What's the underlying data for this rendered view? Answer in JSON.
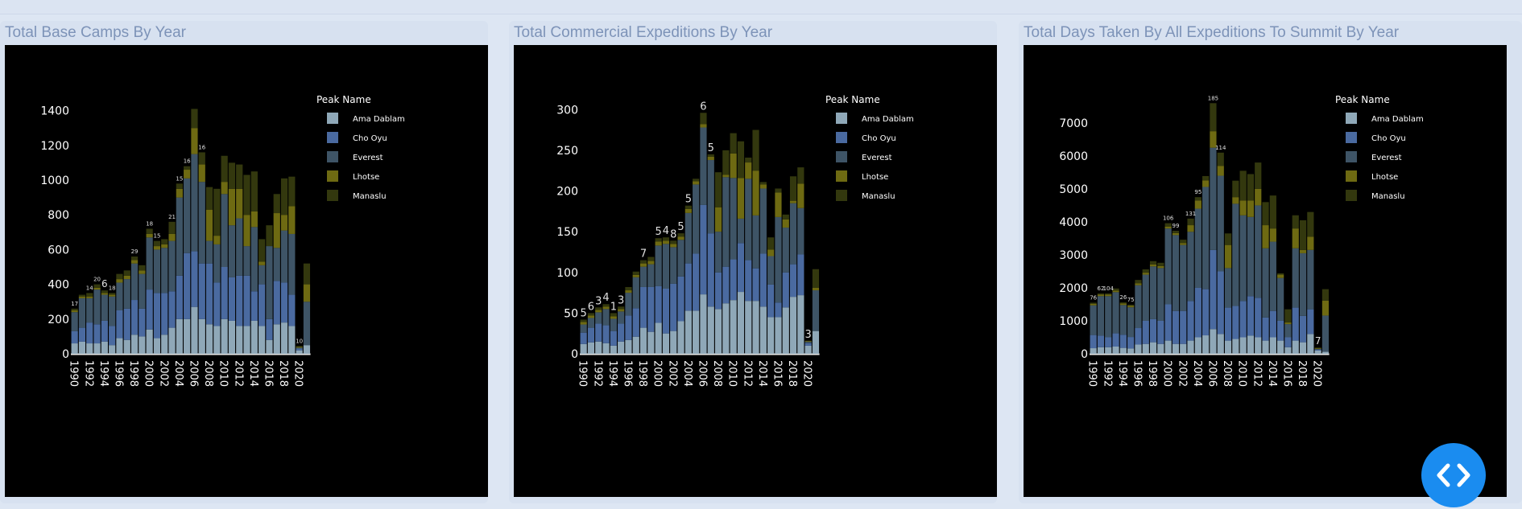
{
  "colors": {
    "Ama Dablam": "#8fa8b8",
    "Cho Oyu": "#4a6aa0",
    "Everest": "#3e5466",
    "Lhotse": "#6e6a12",
    "Manaslu": "#33380e"
  },
  "chart_data": [
    {
      "type": "bar",
      "title": "Total Base Camps By Year",
      "legend_title": "Peak Name",
      "legend_placement": "top-right",
      "stacked": true,
      "x_ticks": [
        "1990",
        "1992",
        "1994",
        "1996",
        "1998",
        "2000",
        "2002",
        "2004",
        "2006",
        "2008",
        "2010",
        "2012",
        "2014",
        "2016",
        "2018",
        "2020"
      ],
      "y_ticks": [
        "0",
        "200",
        "400",
        "600",
        "800",
        "1000",
        "1200",
        "1400"
      ],
      "ylim": [
        0,
        1500
      ],
      "categories": [
        "1990",
        "1991",
        "1992",
        "1993",
        "1994",
        "1995",
        "1996",
        "1997",
        "1998",
        "1999",
        "2000",
        "2001",
        "2002",
        "2003",
        "2004",
        "2005",
        "2006",
        "2007",
        "2008",
        "2009",
        "2010",
        "2011",
        "2012",
        "2013",
        "2014",
        "2015",
        "2016",
        "2017",
        "2018",
        "2019",
        "2020",
        "2021"
      ],
      "series": [
        {
          "name": "Ama Dablam",
          "values": [
            60,
            70,
            60,
            60,
            70,
            50,
            90,
            80,
            110,
            100,
            140,
            90,
            110,
            150,
            200,
            200,
            270,
            200,
            170,
            160,
            200,
            190,
            160,
            160,
            190,
            160,
            80,
            170,
            180,
            160,
            20,
            50
          ]
        },
        {
          "name": "Cho Oyu",
          "values": [
            70,
            80,
            120,
            110,
            120,
            110,
            160,
            180,
            200,
            160,
            230,
            260,
            240,
            210,
            250,
            380,
            320,
            320,
            350,
            250,
            300,
            250,
            290,
            290,
            170,
            240,
            120,
            250,
            230,
            180,
            10,
            0
          ]
        },
        {
          "name": "Everest",
          "values": [
            110,
            170,
            140,
            200,
            150,
            170,
            160,
            170,
            210,
            200,
            300,
            250,
            260,
            290,
            450,
            430,
            560,
            470,
            130,
            220,
            420,
            300,
            330,
            170,
            370,
            110,
            420,
            190,
            300,
            350,
            5,
            250
          ]
        },
        {
          "name": "Lhotse",
          "values": [
            10,
            10,
            10,
            10,
            10,
            10,
            20,
            20,
            20,
            20,
            20,
            20,
            20,
            40,
            50,
            50,
            150,
            100,
            180,
            50,
            70,
            210,
            170,
            180,
            90,
            20,
            0,
            200,
            90,
            160,
            5,
            100
          ]
        },
        {
          "name": "Manaslu",
          "values": [
            10,
            10,
            20,
            20,
            15,
            10,
            30,
            30,
            20,
            30,
            30,
            30,
            30,
            70,
            30,
            20,
            110,
            70,
            130,
            270,
            150,
            150,
            140,
            230,
            230,
            130,
            120,
            110,
            210,
            170,
            5,
            120
          ]
        }
      ],
      "annotations": [
        {
          "x": "1990",
          "label": "17"
        },
        {
          "x": "1992",
          "label": "14"
        },
        {
          "x": "1993",
          "label": "20"
        },
        {
          "x": "1994",
          "label": "6"
        },
        {
          "x": "1995",
          "label": "18"
        },
        {
          "x": "1998",
          "label": "29"
        },
        {
          "x": "2000",
          "label": "18"
        },
        {
          "x": "2001",
          "label": "15"
        },
        {
          "x": "2003",
          "label": "21"
        },
        {
          "x": "2004",
          "label": "15"
        },
        {
          "x": "2005",
          "label": "16"
        },
        {
          "x": "2007",
          "label": "16"
        },
        {
          "x": "2020",
          "label": "10"
        }
      ]
    },
    {
      "type": "bar",
      "title": "Total Commercial Expeditions By Year",
      "legend_title": "Peak Name",
      "legend_placement": "top-right",
      "stacked": true,
      "x_ticks": [
        "1990",
        "1992",
        "1994",
        "1996",
        "1998",
        "2000",
        "2002",
        "2004",
        "2006",
        "2008",
        "2010",
        "2012",
        "2014",
        "2016",
        "2018",
        "2020"
      ],
      "y_ticks": [
        "0",
        "50",
        "100",
        "150",
        "200",
        "250",
        "300"
      ],
      "ylim": [
        0,
        320
      ],
      "categories": [
        "1990",
        "1991",
        "1992",
        "1993",
        "1994",
        "1995",
        "1996",
        "1997",
        "1998",
        "1999",
        "2000",
        "2001",
        "2002",
        "2003",
        "2004",
        "2005",
        "2006",
        "2007",
        "2008",
        "2009",
        "2010",
        "2011",
        "2012",
        "2013",
        "2014",
        "2015",
        "2016",
        "2017",
        "2018",
        "2019",
        "2020",
        "2021"
      ],
      "series": [
        {
          "name": "Ama Dablam",
          "values": [
            12,
            14,
            15,
            13,
            10,
            15,
            17,
            21,
            32,
            27,
            38,
            25,
            28,
            40,
            53,
            53,
            73,
            58,
            55,
            62,
            66,
            76,
            65,
            65,
            58,
            45,
            45,
            57,
            70,
            72,
            10,
            28
          ]
        },
        {
          "name": "Cho Oyu",
          "values": [
            14,
            18,
            22,
            22,
            18,
            22,
            30,
            35,
            50,
            55,
            45,
            55,
            58,
            55,
            58,
            70,
            110,
            90,
            45,
            45,
            50,
            60,
            50,
            40,
            65,
            40,
            18,
            43,
            40,
            50,
            3,
            0
          ]
        },
        {
          "name": "Everest",
          "values": [
            10,
            12,
            14,
            20,
            15,
            15,
            28,
            38,
            25,
            28,
            50,
            55,
            45,
            45,
            62,
            85,
            95,
            90,
            50,
            110,
            100,
            30,
            100,
            65,
            80,
            35,
            105,
            55,
            75,
            57,
            2,
            50
          ]
        },
        {
          "name": "Lhotse",
          "values": [
            3,
            3,
            3,
            3,
            3,
            3,
            3,
            3,
            4,
            4,
            5,
            4,
            4,
            4,
            5,
            4,
            4,
            4,
            30,
            3,
            30,
            50,
            20,
            55,
            5,
            8,
            30,
            10,
            3,
            30,
            1,
            3
          ]
        },
        {
          "name": "Manaslu",
          "values": [
            3,
            3,
            3,
            3,
            4,
            3,
            4,
            4,
            4,
            5,
            4,
            4,
            4,
            4,
            4,
            3,
            14,
            3,
            43,
            30,
            25,
            45,
            6,
            50,
            3,
            15,
            5,
            6,
            30,
            20,
            0,
            23
          ]
        }
      ],
      "annotations": [
        {
          "x": "1990",
          "label": "5"
        },
        {
          "x": "1991",
          "label": "6"
        },
        {
          "x": "1992",
          "label": "3"
        },
        {
          "x": "1993",
          "label": "4"
        },
        {
          "x": "1994",
          "label": "1"
        },
        {
          "x": "1995",
          "label": "3"
        },
        {
          "x": "1998",
          "label": "7"
        },
        {
          "x": "2000",
          "label": "5"
        },
        {
          "x": "2001",
          "label": "4"
        },
        {
          "x": "2002",
          "label": "8"
        },
        {
          "x": "2003",
          "label": "5"
        },
        {
          "x": "2004",
          "label": "5"
        },
        {
          "x": "2006",
          "label": "6"
        },
        {
          "x": "2007",
          "label": "5"
        },
        {
          "x": "2020",
          "label": "3"
        }
      ]
    },
    {
      "type": "bar",
      "title": "Total Days Taken By All Expeditions To Summit By Year",
      "legend_title": "Peak Name",
      "legend_placement": "top-right",
      "stacked": true,
      "x_ticks": [
        "1990",
        "1992",
        "1994",
        "1996",
        "1998",
        "2000",
        "2002",
        "2004",
        "2006",
        "2008",
        "2010",
        "2012",
        "2014",
        "2016",
        "2018",
        "2020"
      ],
      "y_ticks": [
        "0",
        "1000",
        "2000",
        "3000",
        "4000",
        "5000",
        "6000",
        "7000"
      ],
      "ylim": [
        0,
        7900
      ],
      "categories": [
        "1990",
        "1991",
        "1992",
        "1993",
        "1994",
        "1995",
        "1996",
        "1997",
        "1998",
        "1999",
        "2000",
        "2001",
        "2002",
        "2003",
        "2004",
        "2005",
        "2006",
        "2007",
        "2008",
        "2009",
        "2010",
        "2011",
        "2012",
        "2013",
        "2014",
        "2015",
        "2016",
        "2017",
        "2018",
        "2019",
        "2020",
        "2021"
      ],
      "series": [
        {
          "name": "Ama Dablam",
          "values": [
            170,
            200,
            200,
            220,
            180,
            160,
            280,
            300,
            350,
            300,
            400,
            300,
            300,
            400,
            500,
            560,
            750,
            600,
            400,
            450,
            500,
            550,
            500,
            400,
            500,
            400,
            200,
            400,
            350,
            600,
            100,
            60
          ]
        },
        {
          "name": "Cho Oyu",
          "values": [
            400,
            350,
            300,
            400,
            400,
            350,
            500,
            700,
            700,
            700,
            1100,
            1000,
            1000,
            1200,
            1500,
            1400,
            2400,
            1900,
            1000,
            1000,
            1100,
            1200,
            1200,
            700,
            800,
            600,
            300,
            1000,
            800,
            750,
            30,
            0
          ]
        },
        {
          "name": "Everest",
          "values": [
            900,
            1200,
            1250,
            1250,
            900,
            900,
            1300,
            1400,
            1600,
            1600,
            2300,
            2300,
            2000,
            2100,
            2400,
            3100,
            3100,
            2900,
            1200,
            3100,
            2600,
            2400,
            2800,
            2100,
            2100,
            1300,
            400,
            1800,
            1900,
            1800,
            20,
            1100
          ]
        },
        {
          "name": "Lhotse",
          "values": [
            50,
            50,
            50,
            50,
            50,
            50,
            60,
            60,
            60,
            60,
            60,
            60,
            60,
            200,
            250,
            200,
            500,
            300,
            700,
            200,
            450,
            500,
            500,
            700,
            400,
            100,
            50,
            600,
            100,
            400,
            20,
            450
          ]
        },
        {
          "name": "Manaslu",
          "values": [
            30,
            30,
            30,
            60,
            30,
            30,
            100,
            100,
            100,
            100,
            100,
            70,
            100,
            200,
            100,
            130,
            850,
            400,
            350,
            500,
            900,
            800,
            800,
            700,
            1000,
            40,
            400,
            400,
            900,
            750,
            20,
            350
          ]
        }
      ],
      "annotations": [
        {
          "x": "1990",
          "label": "76"
        },
        {
          "x": "1991",
          "label": "62"
        },
        {
          "x": "1992",
          "label": "104"
        },
        {
          "x": "1994",
          "label": "26"
        },
        {
          "x": "1995",
          "label": "75"
        },
        {
          "x": "2000",
          "label": "106"
        },
        {
          "x": "2001",
          "label": "99"
        },
        {
          "x": "2003",
          "label": "131"
        },
        {
          "x": "2004",
          "label": "95"
        },
        {
          "x": "2006",
          "label": "185"
        },
        {
          "x": "2007",
          "label": "114"
        },
        {
          "x": "2020",
          "label": "7"
        }
      ]
    }
  ],
  "fab": {
    "icon": "code-icon"
  }
}
